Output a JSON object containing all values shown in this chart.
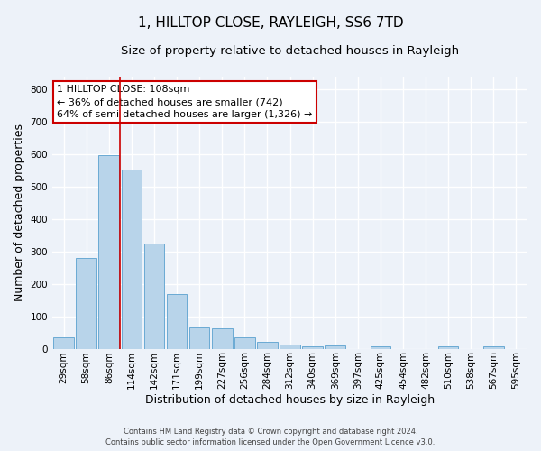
{
  "title": "1, HILLTOP CLOSE, RAYLEIGH, SS6 7TD",
  "subtitle": "Size of property relative to detached houses in Rayleigh",
  "xlabel": "Distribution of detached houses by size in Rayleigh",
  "ylabel": "Number of detached properties",
  "bar_labels": [
    "29sqm",
    "58sqm",
    "86sqm",
    "114sqm",
    "142sqm",
    "171sqm",
    "199sqm",
    "227sqm",
    "256sqm",
    "284sqm",
    "312sqm",
    "340sqm",
    "369sqm",
    "397sqm",
    "425sqm",
    "454sqm",
    "482sqm",
    "510sqm",
    "538sqm",
    "567sqm",
    "595sqm"
  ],
  "bar_values": [
    35,
    280,
    597,
    554,
    325,
    170,
    65,
    63,
    35,
    20,
    12,
    7,
    10,
    0,
    8,
    0,
    0,
    8,
    0,
    8,
    0
  ],
  "bar_color": "#b8d4ea",
  "bar_edge_color": "#6aaad4",
  "vline_x": 2.5,
  "vline_color": "#cc0000",
  "ylim": [
    0,
    840
  ],
  "yticks": [
    0,
    100,
    200,
    300,
    400,
    500,
    600,
    700,
    800
  ],
  "annotation_box_text": "1 HILLTOP CLOSE: 108sqm\n← 36% of detached houses are smaller (742)\n64% of semi-detached houses are larger (1,326) →",
  "footer_line1": "Contains HM Land Registry data © Crown copyright and database right 2024.",
  "footer_line2": "Contains public sector information licensed under the Open Government Licence v3.0.",
  "background_color": "#edf2f9",
  "grid_color": "#ffffff",
  "title_fontsize": 11,
  "subtitle_fontsize": 9.5,
  "tick_fontsize": 7.5,
  "ylabel_fontsize": 9,
  "xlabel_fontsize": 9,
  "annotation_fontsize": 8,
  "footer_fontsize": 6
}
